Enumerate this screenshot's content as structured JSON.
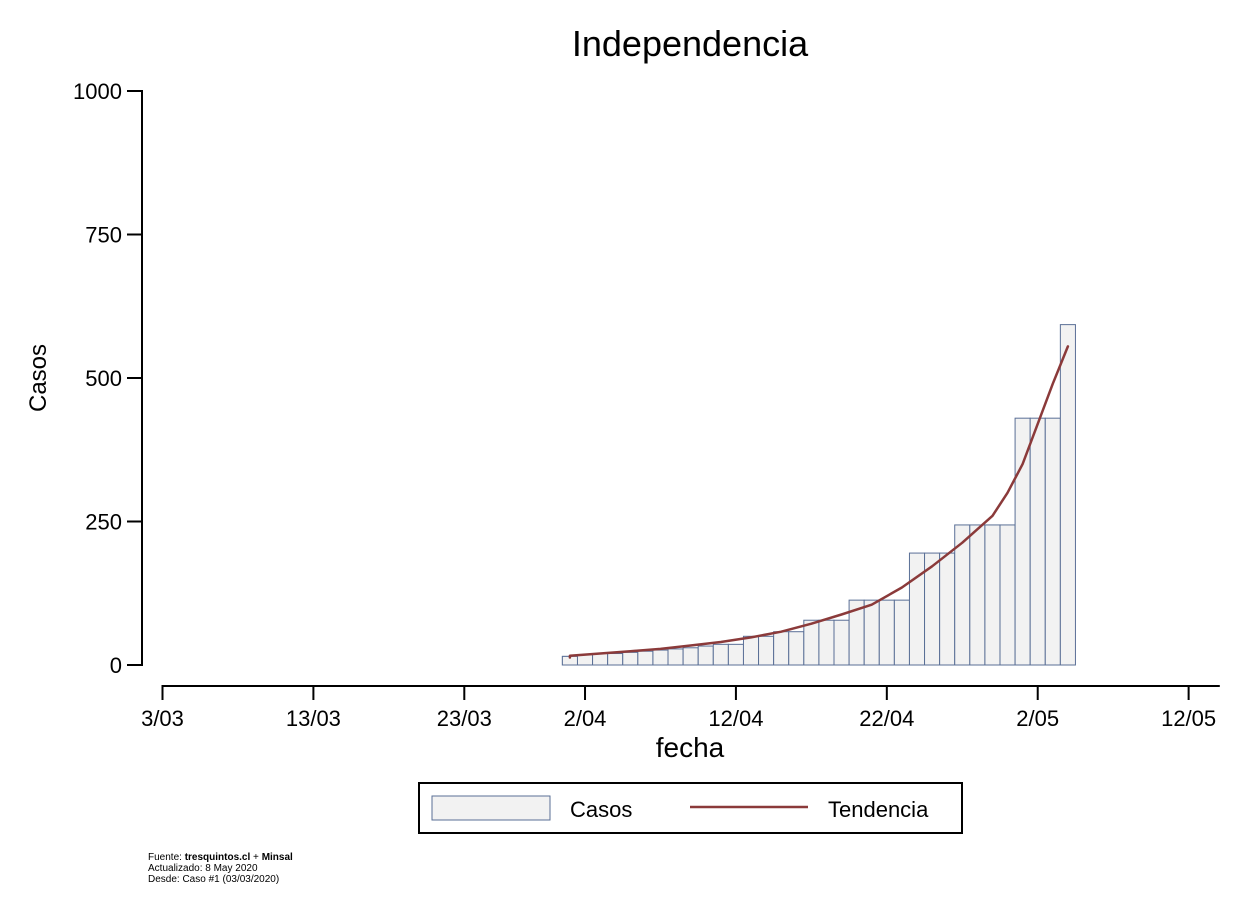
{
  "chart_data": {
    "type": "bar",
    "title": "Independencia",
    "xlabel": "fecha",
    "ylabel": "Casos",
    "ylim": [
      0,
      1000
    ],
    "yticks": [
      0,
      250,
      500,
      750,
      1000
    ],
    "xticks": [
      "3/03",
      "13/03",
      "23/03",
      "2/04",
      "12/04",
      "22/04",
      "2/05",
      "12/05"
    ],
    "grid": false,
    "legend_position": "bottom",
    "bar_color": "#f2f2f2",
    "bar_edge_color": "#5a6f96",
    "line_color": "#8b3a3a",
    "series": [
      {
        "name": "Casos",
        "type": "bar",
        "dates": [
          "30/03",
          "31/03",
          "1/04",
          "2/04",
          "3/04",
          "4/04",
          "5/04",
          "6/04",
          "7/04",
          "8/04",
          "9/04",
          "10/04",
          "11/04",
          "12/04",
          "13/04",
          "14/04",
          "15/04",
          "16/04",
          "17/04",
          "18/04",
          "19/04",
          "20/04",
          "21/04",
          "22/04",
          "23/04",
          "24/04",
          "25/04",
          "26/04",
          "27/04",
          "28/04",
          "29/04",
          "30/04",
          "1/05",
          "2/05",
          "3/05",
          "4/05"
        ],
        "values": [
          15,
          15,
          15,
          18,
          20,
          20,
          22,
          24,
          26,
          28,
          30,
          33,
          36,
          36,
          50,
          50,
          58,
          58,
          78,
          78,
          78,
          113,
          113,
          113,
          113,
          195,
          195,
          195,
          244,
          244,
          244,
          244,
          430,
          430,
          430,
          593
        ]
      },
      {
        "name": "Tendencia",
        "type": "line",
        "dates": [
          "30/03",
          "1/04",
          "3/04",
          "5/04",
          "7/04",
          "9/04",
          "11/04",
          "13/04",
          "15/04",
          "17/04",
          "19/04",
          "21/04",
          "23/04",
          "25/04",
          "27/04",
          "29/04",
          "30/04",
          "1/05",
          "2/05",
          "3/05",
          "4/05"
        ],
        "values": [
          13,
          16,
          20,
          24,
          28,
          34,
          40,
          48,
          58,
          72,
          88,
          105,
          135,
          172,
          213,
          260,
          300,
          350,
          420,
          490,
          555
        ]
      }
    ]
  },
  "legend": {
    "items": [
      {
        "label": "Casos"
      },
      {
        "label": "Tendencia"
      }
    ]
  },
  "footer": {
    "fuente_prefix": "Fuente: ",
    "fuente_site": "tresquintos.cl",
    "fuente_plus": " + ",
    "fuente_src": "Minsal",
    "actualizado": "Actualizado: 8 May 2020",
    "desde": "Desde: Caso #1  (03/03/2020)"
  }
}
